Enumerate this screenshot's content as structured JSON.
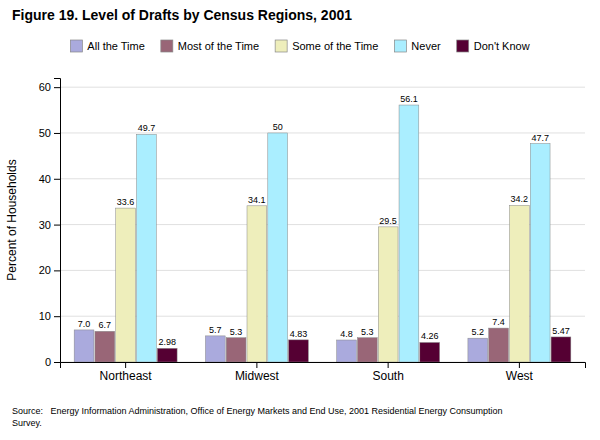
{
  "chart_data": {
    "type": "bar",
    "title": "Figure 19. Level of Drafts by Census Regions, 2001",
    "ylabel": "Percent of Households",
    "categories": [
      "Northeast",
      "Midwest",
      "South",
      "West"
    ],
    "series": [
      {
        "name": "All the Time",
        "color": "#aaaadd",
        "values": [
          7.0,
          5.7,
          4.8,
          5.2
        ],
        "value_labels": [
          "7.0",
          "5.7",
          "4.8",
          "5.2"
        ]
      },
      {
        "name": "Most of the Time",
        "color": "#996677",
        "values": [
          6.7,
          5.3,
          5.3,
          7.4
        ],
        "value_labels": [
          "6.7",
          "5.3",
          "5.3",
          "7.4"
        ]
      },
      {
        "name": "Some of the Time",
        "color": "#eeeebb",
        "values": [
          33.6,
          34.1,
          29.5,
          34.2
        ],
        "value_labels": [
          "33.6",
          "34.1",
          "29.5",
          "34.2"
        ]
      },
      {
        "name": "Never",
        "color": "#aaeeff",
        "values": [
          49.7,
          50.0,
          56.1,
          47.7
        ],
        "value_labels": [
          "49.7",
          "50",
          "56.1",
          "47.7"
        ]
      },
      {
        "name": "Don't Know",
        "color": "#550033",
        "values": [
          2.98,
          4.83,
          4.26,
          5.47
        ],
        "value_labels": [
          "2.98",
          "4.83",
          "4.26",
          "5.47"
        ]
      }
    ],
    "ylim": [
      0,
      62
    ],
    "yticks": [
      0,
      10,
      20,
      30,
      40,
      50,
      60
    ],
    "grid": true,
    "data_labels": true,
    "legend": "top",
    "annotations": [
      "Source:   Energy Information Administration, Office of Energy Markets and End Use, 2001 Residential Energy Consumption\nSurvey."
    ]
  }
}
